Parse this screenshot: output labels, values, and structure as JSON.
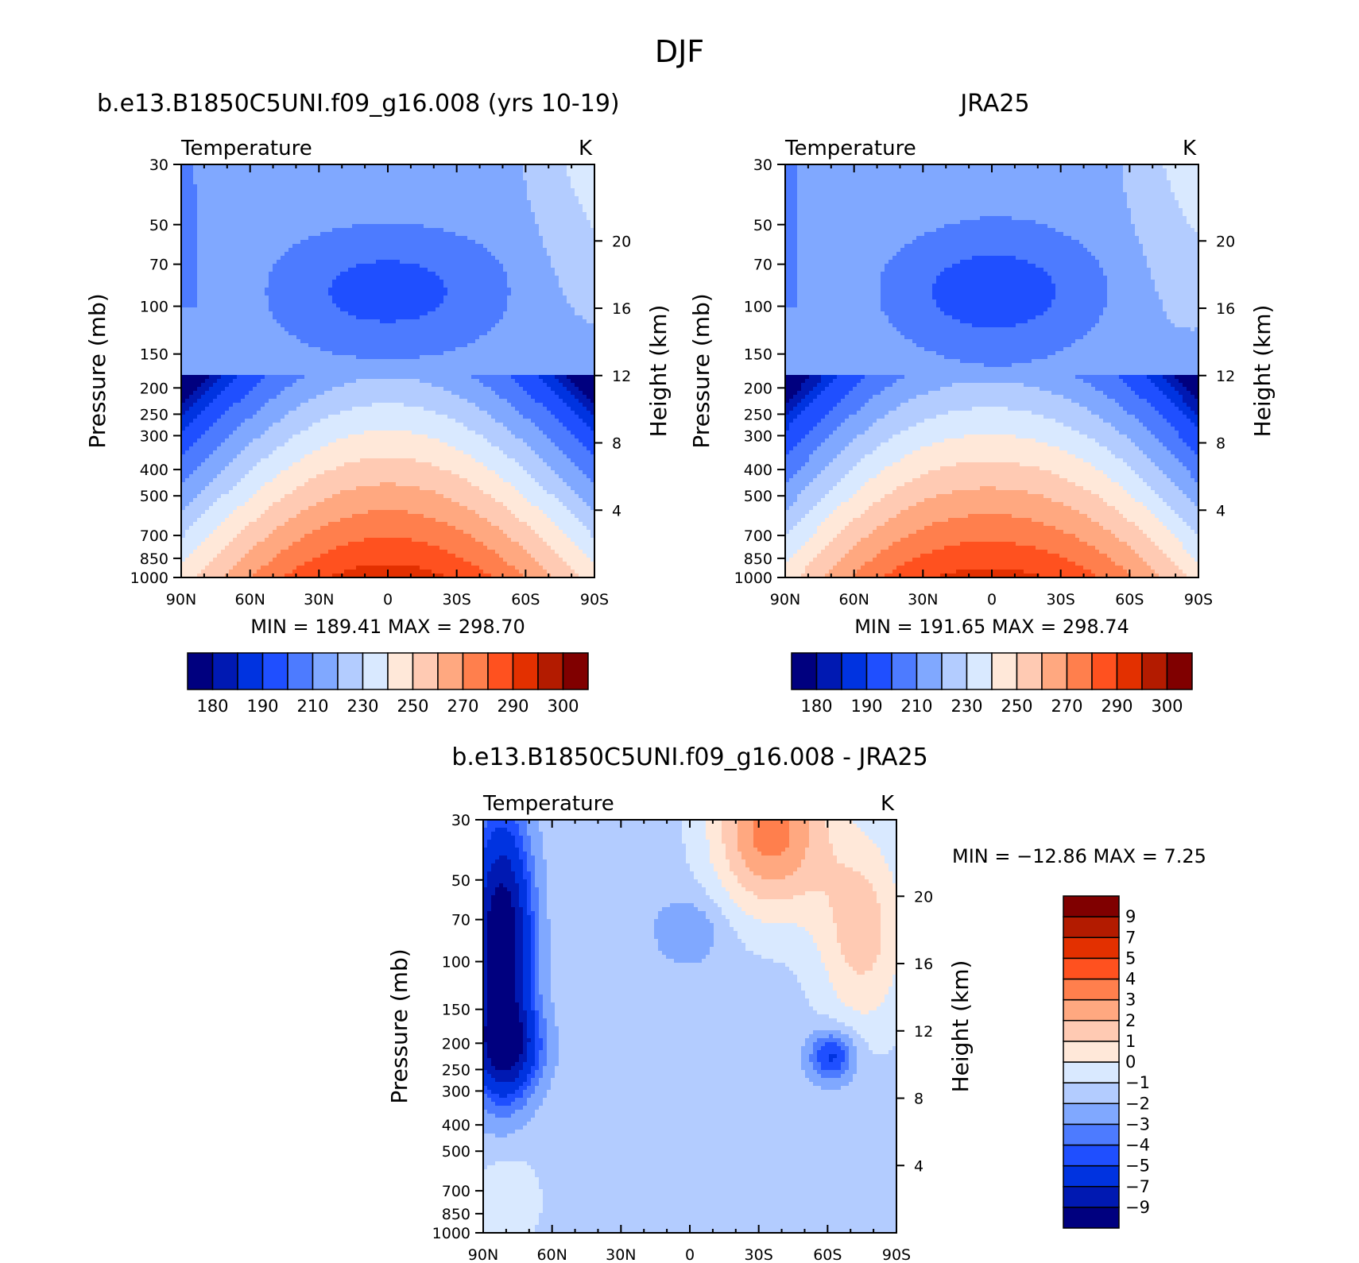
{
  "page": {
    "title": "DJF"
  },
  "palette_abs": [
    "#00007f",
    "#0019b2",
    "#0033e0",
    "#1f4fff",
    "#4d7bff",
    "#80a8ff",
    "#b3ccff",
    "#d9e9ff",
    "#ffe8d9",
    "#ffcab3",
    "#ffa880",
    "#ff7f4d",
    "#ff511f",
    "#e33000",
    "#b31b00",
    "#800000"
  ],
  "palette_diff": [
    "#00007f",
    "#0019b2",
    "#0033e0",
    "#1f4fff",
    "#4d7bff",
    "#80a8ff",
    "#b3ccff",
    "#d9e9ff",
    "#ffe8d9",
    "#ffcab3",
    "#ffa880",
    "#ff7f4d",
    "#ff511f",
    "#e33000",
    "#b31b00",
    "#800000"
  ],
  "chart_data": [
    {
      "type": "heatmap",
      "panel_title": "b.e13.B1850C5UNI.f09_g16.008 (yrs 10-19)",
      "variable_label": "Temperature",
      "units": "K",
      "ylabel": "Pressure (mb)",
      "y2label": "Height (km)",
      "x_ticks": [
        "90N",
        "60N",
        "30N",
        "0",
        "30S",
        "60S",
        "90S"
      ],
      "y_ticks": [
        "30",
        "50",
        "70",
        "100",
        "150",
        "200",
        "250",
        "300",
        "400",
        "500",
        "700",
        "850",
        "1000"
      ],
      "y2_ticks": [
        "4",
        "8",
        "12",
        "16",
        "20"
      ],
      "stats_text": "MIN = 189.41   MAX = 298.70",
      "min": 189.41,
      "max": 298.7,
      "colorbar_labels": [
        "180",
        "190",
        "210",
        "230",
        "250",
        "270",
        "290",
        "300"
      ]
    },
    {
      "type": "heatmap",
      "panel_title": "JRA25",
      "variable_label": "Temperature",
      "units": "K",
      "ylabel": "Pressure (mb)",
      "y2label": "Height (km)",
      "x_ticks": [
        "90N",
        "60N",
        "30N",
        "0",
        "30S",
        "60S",
        "90S"
      ],
      "y_ticks": [
        "30",
        "50",
        "70",
        "100",
        "150",
        "200",
        "250",
        "300",
        "400",
        "500",
        "700",
        "850",
        "1000"
      ],
      "y2_ticks": [
        "4",
        "8",
        "12",
        "16",
        "20"
      ],
      "stats_text": "MIN = 191.65   MAX = 298.74",
      "min": 191.65,
      "max": 298.74,
      "colorbar_labels": [
        "180",
        "190",
        "210",
        "230",
        "250",
        "270",
        "290",
        "300"
      ]
    },
    {
      "type": "heatmap",
      "panel_title": "b.e13.B1850C5UNI.f09_g16.008 - JRA25",
      "variable_label": "Temperature",
      "units": "K",
      "ylabel": "Pressure (mb)",
      "y2label": "Height (km)",
      "x_ticks": [
        "90N",
        "60N",
        "30N",
        "0",
        "30S",
        "60S",
        "90S"
      ],
      "y_ticks": [
        "30",
        "50",
        "70",
        "100",
        "150",
        "200",
        "250",
        "300",
        "400",
        "500",
        "700",
        "850",
        "1000"
      ],
      "y2_ticks": [
        "4",
        "8",
        "12",
        "16",
        "20"
      ],
      "stats_text": "MIN = −12.86   MAX =    7.25",
      "min": -12.86,
      "max": 7.25,
      "colorbar_labels": [
        "9",
        "7",
        "5",
        "4",
        "3",
        "2",
        "1",
        "0",
        "−1",
        "−2",
        "−3",
        "−4",
        "−5",
        "−7",
        "−9"
      ]
    }
  ]
}
